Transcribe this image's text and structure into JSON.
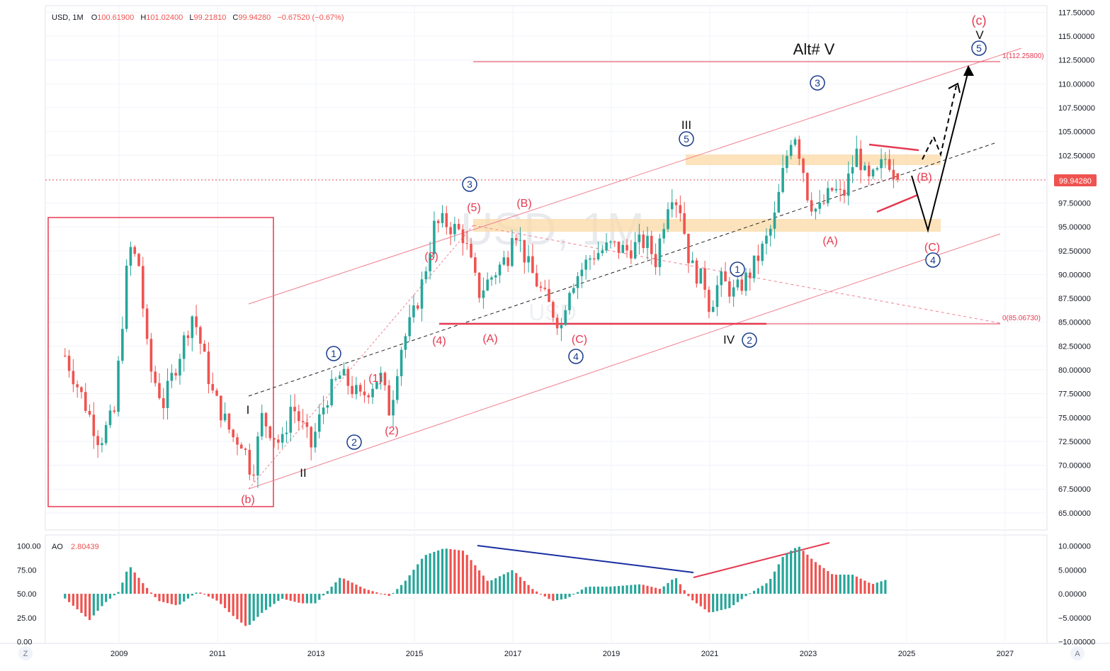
{
  "header": {
    "symbol": "USD, 1M",
    "o_label": "O",
    "o_val": "100.61900",
    "h_label": "H",
    "h_val": "101.02400",
    "l_label": "L",
    "l_val": "99.21810",
    "c_label": "C",
    "c_val": "99.94280",
    "change": "−0.67520 (−0.67%)"
  },
  "watermark": {
    "symbol": "USD, 1M",
    "sub": "USD"
  },
  "price_tag": "99.94280",
  "ao": {
    "label": "AO",
    "value": "2.80439"
  },
  "colors": {
    "up": "#26a69a",
    "down": "#ef5350",
    "wave_red": "#e53950",
    "wave_blue": "#1a3b8c",
    "zone": "#fbd9a6"
  },
  "corner": {
    "left": "Z",
    "right": "A"
  },
  "chart_data": {
    "type": "candlestick",
    "interval": "1M",
    "x_ticks": [
      "2009",
      "2011",
      "2013",
      "2015",
      "2017",
      "2019",
      "2021",
      "2023",
      "2025",
      "2027"
    ],
    "y_ticks": [
      "117.50000",
      "115.00000",
      "112.50000",
      "110.00000",
      "107.50000",
      "105.00000",
      "102.50000",
      "100.00000",
      "97.50000",
      "95.00000",
      "92.50000",
      "90.00000",
      "87.50000",
      "85.00000",
      "82.50000",
      "80.00000",
      "77.50000",
      "75.00000",
      "72.50000",
      "70.00000",
      "67.50000",
      "65.00000"
    ],
    "ylim": [
      63.8,
      118.2
    ],
    "ao_left_ticks": [
      "100.00",
      "75.00",
      "50.00",
      "25.00",
      "0.00"
    ],
    "ao_right_ticks": [
      "10.00000",
      "5.00000",
      "0.00000",
      "−5.00000",
      "−10.00000"
    ],
    "path": [
      [
        2007.9,
        81.5
      ],
      [
        2008.3,
        76.5
      ],
      [
        2008.6,
        72.5
      ],
      [
        2008.9,
        75.5
      ],
      [
        2009.2,
        93
      ],
      [
        2009.4,
        91
      ],
      [
        2009.6,
        80.5
      ],
      [
        2009.9,
        76.5
      ],
      [
        2010.5,
        86
      ],
      [
        2010.9,
        77.5
      ],
      [
        2011.3,
        73
      ],
      [
        2011.5,
        72.5
      ],
      [
        2011.7,
        69
      ],
      [
        2011.9,
        75
      ],
      [
        2012.3,
        72
      ],
      [
        2012.5,
        76.5
      ],
      [
        2012.9,
        72
      ],
      [
        2013.2,
        77
      ],
      [
        2013.5,
        79.5
      ],
      [
        2013.9,
        77
      ],
      [
        2014.3,
        79.5
      ],
      [
        2014.5,
        75.5
      ],
      [
        2014.7,
        82
      ],
      [
        2015.0,
        86
      ],
      [
        2015.2,
        90
      ],
      [
        2015.4,
        95
      ],
      [
        2015.6,
        95.5
      ],
      [
        2015.9,
        94.5
      ],
      [
        2016.0,
        94
      ],
      [
        2016.3,
        88
      ],
      [
        2016.6,
        90
      ],
      [
        2016.9,
        92
      ],
      [
        2017.0,
        95.5
      ],
      [
        2017.3,
        91
      ],
      [
        2017.7,
        87
      ],
      [
        2018.0,
        84.5
      ],
      [
        2018.1,
        88.5
      ],
      [
        2018.6,
        92
      ],
      [
        2019.0,
        93
      ],
      [
        2019.3,
        92.5
      ],
      [
        2019.7,
        93.5
      ],
      [
        2019.9,
        91.5
      ],
      [
        2020.2,
        99
      ],
      [
        2020.4,
        97
      ],
      [
        2020.6,
        91
      ],
      [
        2020.9,
        89
      ],
      [
        2021.0,
        86.5
      ],
      [
        2021.2,
        89.5
      ],
      [
        2021.5,
        88
      ],
      [
        2021.8,
        90
      ],
      [
        2022.1,
        93
      ],
      [
        2022.3,
        95.5
      ],
      [
        2022.5,
        101
      ],
      [
        2022.7,
        105.5
      ],
      [
        2022.9,
        101
      ],
      [
        2023.0,
        98
      ],
      [
        2023.2,
        96.5
      ],
      [
        2023.5,
        99
      ],
      [
        2023.7,
        98
      ],
      [
        2023.9,
        101.5
      ],
      [
        2024.0,
        103
      ],
      [
        2024.2,
        99.5
      ],
      [
        2024.4,
        100.5
      ],
      [
        2024.6,
        102.5
      ],
      [
        2024.8,
        99.94
      ]
    ],
    "ao_path": [
      [
        2007.9,
        -1
      ],
      [
        2008.4,
        -5.5
      ],
      [
        2008.7,
        -2
      ],
      [
        2009.0,
        0.5
      ],
      [
        2009.2,
        6
      ],
      [
        2009.5,
        2
      ],
      [
        2009.8,
        -1.5
      ],
      [
        2010.2,
        -2.5
      ],
      [
        2010.6,
        0.5
      ],
      [
        2011.0,
        -1.5
      ],
      [
        2011.3,
        -4.5
      ],
      [
        2011.6,
        -7
      ],
      [
        2011.9,
        -4
      ],
      [
        2012.3,
        -1
      ],
      [
        2012.7,
        -2
      ],
      [
        2013.0,
        -2
      ],
      [
        2013.5,
        3.5
      ],
      [
        2014.0,
        1
      ],
      [
        2014.5,
        -0.5
      ],
      [
        2014.8,
        2.5
      ],
      [
        2015.2,
        8
      ],
      [
        2015.6,
        9.5
      ],
      [
        2016.0,
        9
      ],
      [
        2016.5,
        2.5
      ],
      [
        2017.0,
        5
      ],
      [
        2017.4,
        1
      ],
      [
        2017.8,
        -1.5
      ],
      [
        2018.1,
        -1
      ],
      [
        2018.5,
        1.5
      ],
      [
        2019.0,
        1.5
      ],
      [
        2019.6,
        2
      ],
      [
        2020.0,
        1
      ],
      [
        2020.3,
        3.5
      ],
      [
        2020.6,
        -1
      ],
      [
        2021.0,
        -4
      ],
      [
        2021.4,
        -3
      ],
      [
        2021.8,
        0
      ],
      [
        2022.2,
        2.5
      ],
      [
        2022.5,
        8
      ],
      [
        2022.8,
        10
      ],
      [
        2023.1,
        7
      ],
      [
        2023.5,
        4
      ],
      [
        2023.9,
        4
      ],
      [
        2024.3,
        2
      ],
      [
        2024.6,
        3
      ]
    ],
    "labels": {
      "alt_v": "Alt# V",
      "roman": [
        "I",
        "II",
        "III",
        "IV",
        "V"
      ],
      "red_paren": [
        "(b)",
        "(1)",
        "(2)",
        "(3)",
        "(4)",
        "(5)",
        "(A)",
        "(B)",
        "(C)",
        "(A)",
        "(B)",
        "(C)",
        "(c)"
      ],
      "blue_circle": [
        "1",
        "2",
        "3",
        "4",
        "5",
        "1",
        "2",
        "3",
        "4",
        "5"
      ]
    },
    "fib_top": "1(112.25800)",
    "fib_bottom": "0(85.06730)"
  }
}
